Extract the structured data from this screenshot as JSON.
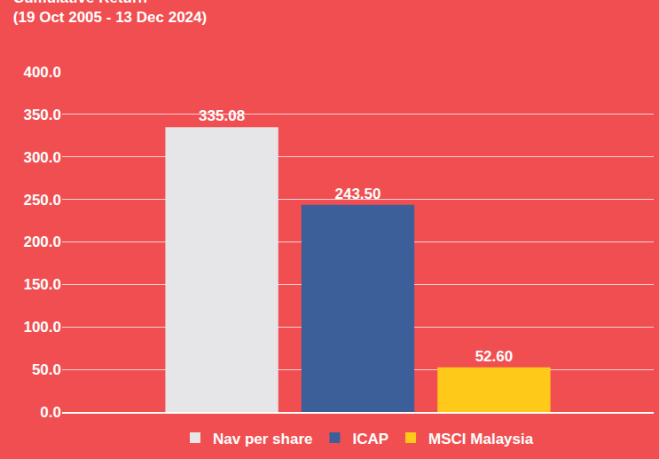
{
  "chart_data": {
    "type": "bar",
    "title": "Cumulative Return",
    "subtitle": "(19 Oct 2005 - 13 Dec 2024)",
    "categories": [
      null
    ],
    "series": [
      {
        "name": "Nav per share",
        "color": "#e6e6e8",
        "values": [
          335.08
        ],
        "value_labels": [
          "335.08"
        ]
      },
      {
        "name": "ICAP",
        "color": "#3d5f99",
        "values": [
          243.5
        ],
        "value_labels": [
          "243.50"
        ]
      },
      {
        "name": "MSCI Malaysia",
        "color": "#ffc91a",
        "values": [
          52.6
        ],
        "value_labels": [
          "52.60"
        ]
      }
    ],
    "ylim": [
      0,
      400
    ],
    "yticks": [
      {
        "value": 0,
        "label": "0.0"
      },
      {
        "value": 50,
        "label": "50.0"
      },
      {
        "value": 100,
        "label": "100.0"
      },
      {
        "value": 150,
        "label": "150.0"
      },
      {
        "value": 200,
        "label": "200.0"
      },
      {
        "value": 250,
        "label": "250.0"
      },
      {
        "value": 300,
        "label": "300.0"
      },
      {
        "value": 350,
        "label": "350.0"
      },
      {
        "value": 400,
        "label": "400.0"
      }
    ],
    "grid": true,
    "legend": "bottom",
    "data_labels": true,
    "tick_labels": "y"
  }
}
